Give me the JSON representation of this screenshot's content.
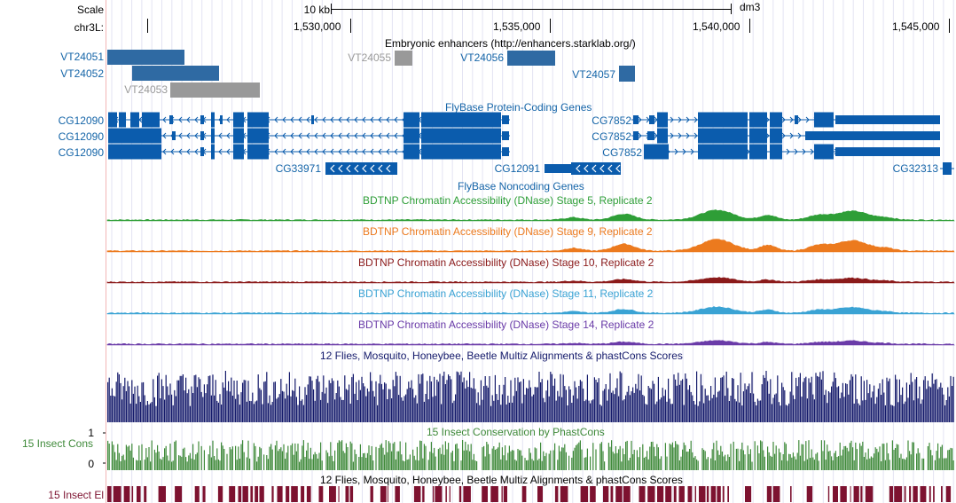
{
  "ruler": {
    "scale_label": "Scale",
    "chrom_label": "chr3L:",
    "scale_bar_text": "10 kb",
    "assembly": "dm3",
    "positions": [
      "1,530,000",
      "1,535,000",
      "1,540,000",
      "1,545,000"
    ]
  },
  "tracks": {
    "enhancers": {
      "title": "Embryonic enhancers (http://enhancers.starklab.org/)",
      "items": [
        {
          "name": "VT24051",
          "color": "#2f6aa3"
        },
        {
          "name": "VT24052",
          "color": "#2f6aa3"
        },
        {
          "name": "VT24053",
          "color": "#999999"
        },
        {
          "name": "VT24055",
          "color": "#999999"
        },
        {
          "name": "VT24056",
          "color": "#2f6aa3"
        },
        {
          "name": "VT24057",
          "color": "#2f6aa3"
        }
      ]
    },
    "coding_genes": {
      "title": "FlyBase Protein-Coding Genes",
      "items": [
        "CG12090",
        "CG12090",
        "CG12090",
        "CG7852",
        "CG7852",
        "CG7852",
        "CG33971",
        "CG12091",
        "CG32313"
      ],
      "color": "#0b5cad"
    },
    "noncoding_genes": {
      "title": "FlyBase Noncoding Genes"
    },
    "dnase": [
      {
        "title": "BDTNP Chromatin Accessibility (DNase) Stage 5, Replicate 2",
        "color": "#2e9e37"
      },
      {
        "title": "BDTNP Chromatin Accessibility (DNase) Stage 9, Replicate 2",
        "color": "#ec7a1e"
      },
      {
        "title": "BDTNP Chromatin Accessibility (DNase) Stage 10, Replicate 2",
        "color": "#8b1a1a"
      },
      {
        "title": "BDTNP Chromatin Accessibility (DNase) Stage 11, Replicate 2",
        "color": "#3aa3d4"
      },
      {
        "title": "BDTNP Chromatin Accessibility (DNase) Stage 14, Replicate 2",
        "color": "#6a3ba8"
      }
    ],
    "multiz": {
      "title": "12 Flies, Mosquito, Honeybee, Beetle Multiz Alignments & phastCons Scores",
      "color": "#141a6b"
    },
    "phastcons": {
      "title": "15 Insect Conservation by PhastCons",
      "side_label": "15 Insect Cons",
      "ymax": "1",
      "ymin": "0",
      "color": "#3f8a3a"
    },
    "elements": {
      "title": "12 Flies, Mosquito, Honeybee, Beetle Multiz Alignments & phastCons Scores",
      "side_label": "15 Insect El",
      "color": "#7d1230"
    }
  }
}
